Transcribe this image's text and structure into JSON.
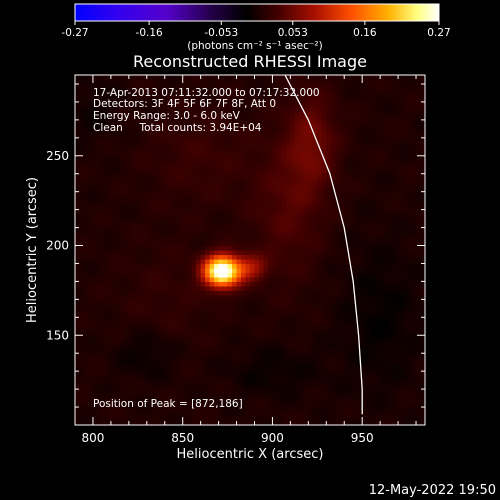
{
  "chart_data": {
    "type": "heatmap",
    "title": "Reconstructed RHESSI Image",
    "xlabel": "Heliocentric X (arcsec)",
    "ylabel": "Heliocentric Y (arcsec)",
    "xlim": [
      790,
      985
    ],
    "ylim": [
      100,
      295
    ],
    "x_ticks": [
      800,
      850,
      900,
      950
    ],
    "y_ticks": [
      150,
      200,
      250
    ],
    "colorbar": {
      "range": [
        -0.27,
        0.27
      ],
      "tick_values": [
        -0.27,
        -0.16,
        -0.053,
        0.053,
        0.16,
        0.27
      ],
      "tick_labels": [
        "-0.27",
        "-0.16",
        "-0.053",
        "0.053",
        "0.16",
        "0.27"
      ],
      "unit_label": "(photons cm⁻² s⁻¹ asec⁻²)",
      "colors": [
        "#0000ff",
        "#5500cc",
        "#220044",
        "#000000",
        "#440000",
        "#aa1000",
        "#ff5000",
        "#ffb000",
        "#ffff80",
        "#ffffff"
      ]
    },
    "annotation_lines": [
      "17-Apr-2013 07:11:32.000 to 07:17:32.000",
      "Detectors: 3F 4F 5F 6F 7F 8F, Att 0",
      "Energy Range: 3.0 - 6.0 keV",
      "Clean     Total counts: 3.94E+04"
    ],
    "peak_label": "Position of Peak = [872,186]",
    "peak": {
      "x": 872,
      "y": 186,
      "value": 0.27
    },
    "sources": [
      {
        "x": 872,
        "y": 186,
        "sx": 7,
        "sy": 6,
        "amp": 0.29
      },
      {
        "x": 888,
        "y": 188,
        "sx": 6,
        "sy": 5,
        "amp": 0.07
      },
      {
        "x": 922,
        "y": 258,
        "sx": 10,
        "sy": 20,
        "amp": 0.045
      },
      {
        "x": 908,
        "y": 220,
        "sx": 14,
        "sy": 28,
        "amp": 0.03
      },
      {
        "x": 860,
        "y": 250,
        "sx": 22,
        "sy": 20,
        "amp": 0.018
      },
      {
        "x": 840,
        "y": 170,
        "sx": 20,
        "sy": 25,
        "amp": 0.012
      },
      {
        "x": 830,
        "y": 140,
        "sx": 12,
        "sy": 10,
        "amp": -0.02
      },
      {
        "x": 900,
        "y": 130,
        "sx": 18,
        "sy": 10,
        "amp": -0.015
      },
      {
        "x": 960,
        "y": 160,
        "sx": 16,
        "sy": 30,
        "amp": -0.018
      },
      {
        "x": 800,
        "y": 275,
        "sx": 10,
        "sy": 12,
        "amp": -0.012
      }
    ],
    "limb": [
      {
        "x": 907,
        "y": 295
      },
      {
        "x": 920,
        "y": 270
      },
      {
        "x": 932,
        "y": 240
      },
      {
        "x": 940,
        "y": 210
      },
      {
        "x": 945,
        "y": 180
      },
      {
        "x": 948,
        "y": 150
      },
      {
        "x": 950,
        "y": 120
      },
      {
        "x": 950,
        "y": 106
      }
    ]
  },
  "footer": {
    "timestamp": "12-May-2022 19:50"
  }
}
